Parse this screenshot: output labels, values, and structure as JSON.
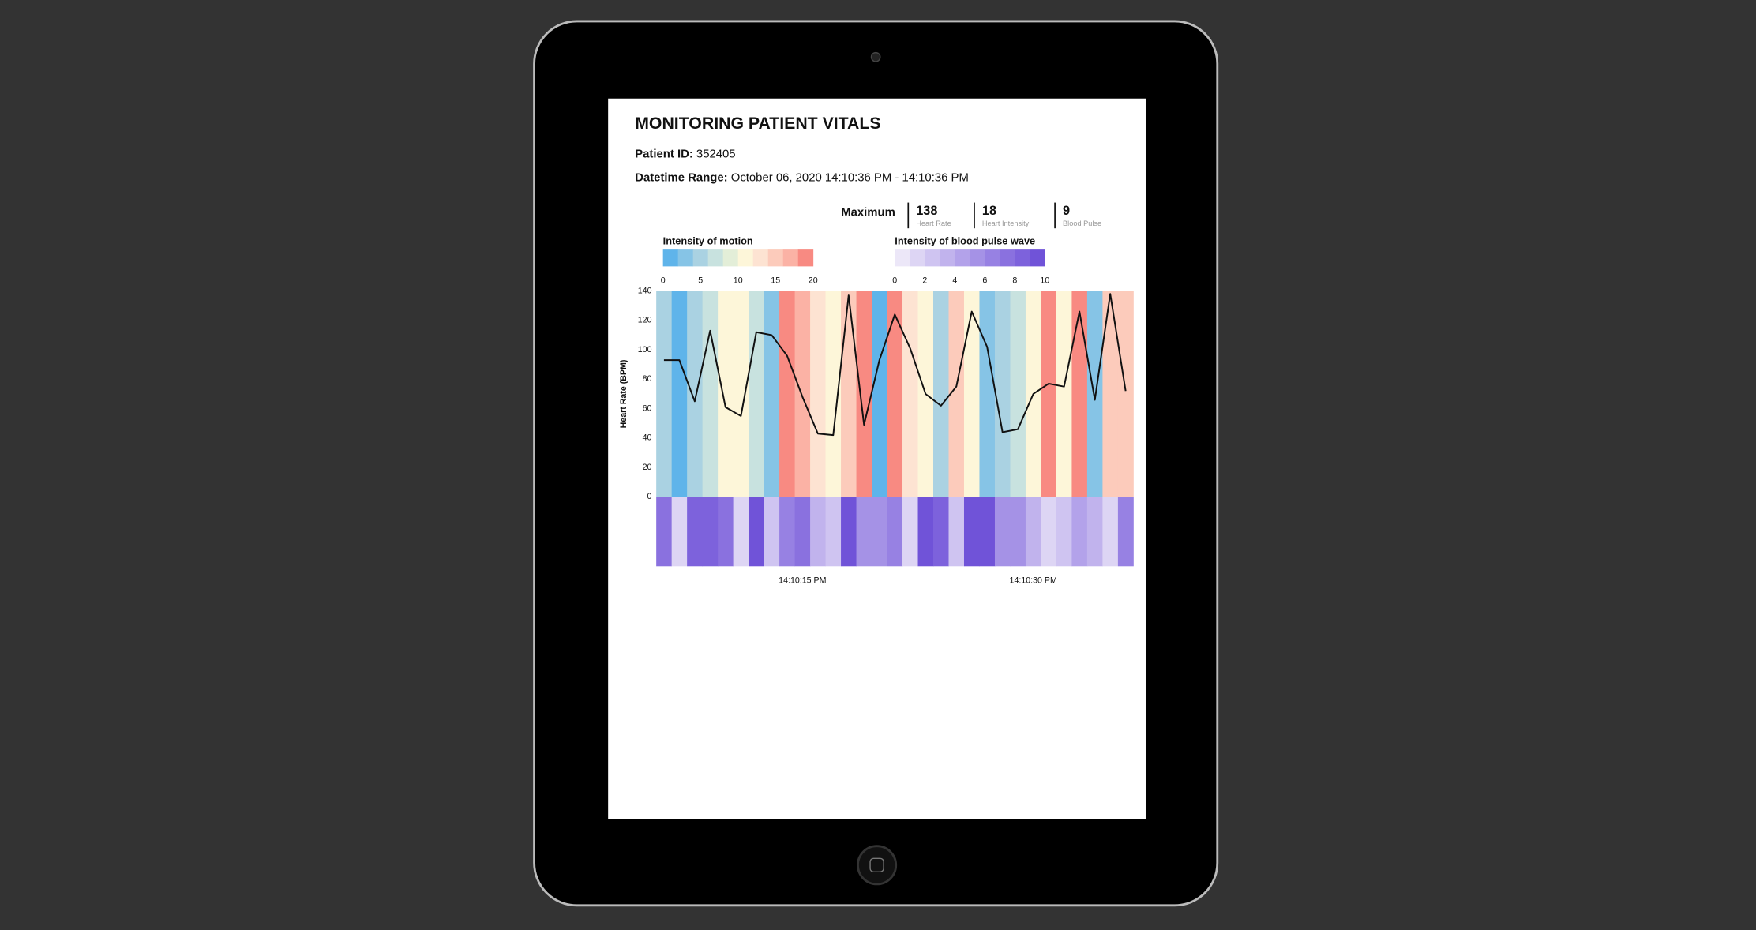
{
  "header": {
    "title": "MONITORING PATIENT VITALS",
    "patient_id_label": "Patient ID:",
    "patient_id": "352405",
    "datetime_label": "Datetime Range:",
    "datetime_range": "October 06, 2020 14:10:36 PM - 14:10:36 PM"
  },
  "summary": {
    "label": "Maximum",
    "items": [
      {
        "value": 138,
        "label": "Heart Rate"
      },
      {
        "value": 18,
        "label": "Heart Intensity"
      },
      {
        "value": 9,
        "label": "Blood Pulse"
      }
    ]
  },
  "chart_data": {
    "type": "heatmap-line",
    "y_label": "Heart Rate (BPM)",
    "ylim": [
      0,
      140
    ],
    "yticks": [
      0,
      20,
      40,
      60,
      80,
      100,
      120,
      140
    ],
    "categories": [
      null,
      null,
      null,
      null,
      null,
      null,
      null,
      null,
      null,
      "14:10:15 PM",
      null,
      null,
      null,
      null,
      null,
      null,
      null,
      null,
      null,
      null,
      null,
      null,
      null,
      null,
      "14:10:30 PM",
      null,
      null,
      null,
      null,
      null,
      null
    ],
    "heart_rate": {
      "color": "#111111",
      "values": [
        93,
        93,
        65,
        113,
        61,
        55,
        112,
        110,
        96,
        68,
        43,
        42,
        137,
        49,
        93,
        124,
        101,
        70,
        62,
        75,
        126,
        102,
        44,
        46,
        70,
        77,
        75,
        126,
        66,
        138,
        72
      ]
    },
    "motion": {
      "title": "Intensity of motion",
      "lim": [
        0,
        20
      ],
      "ticks": [
        0,
        5,
        10,
        15,
        20
      ],
      "colors": [
        "#5fb4ea",
        "#86c4e6",
        "#aad2e2",
        "#c8e2df",
        "#e3eed8",
        "#fdf6d9",
        "#fde3d2",
        "#fccbbb",
        "#fbb2a5",
        "#f88a82"
      ],
      "values": [
        4,
        0,
        5,
        6,
        10,
        10,
        6,
        3,
        18,
        17,
        13,
        10,
        15,
        18,
        1,
        18,
        13,
        11,
        4,
        15,
        11,
        3,
        4,
        7,
        10,
        18,
        11,
        18,
        3,
        14,
        14
      ]
    },
    "pulse": {
      "title": "Intensity of blood pulse wave",
      "lim": [
        0,
        10
      ],
      "ticks": [
        0,
        2,
        4,
        6,
        8,
        10
      ],
      "colors": [
        "#ece7f8",
        "#ddd5f4",
        "#cfc4f1",
        "#c1b3ed",
        "#b3a2ea",
        "#a592e6",
        "#9781e3",
        "#8a71df",
        "#7d62dc",
        "#7053d8"
      ],
      "values": [
        7,
        1,
        8,
        8,
        7,
        1,
        9,
        2,
        6,
        7,
        3,
        2,
        9,
        5,
        5,
        6,
        1,
        9,
        8,
        2,
        9,
        9,
        5,
        5,
        3,
        1,
        2,
        4,
        3,
        1,
        6
      ]
    }
  }
}
